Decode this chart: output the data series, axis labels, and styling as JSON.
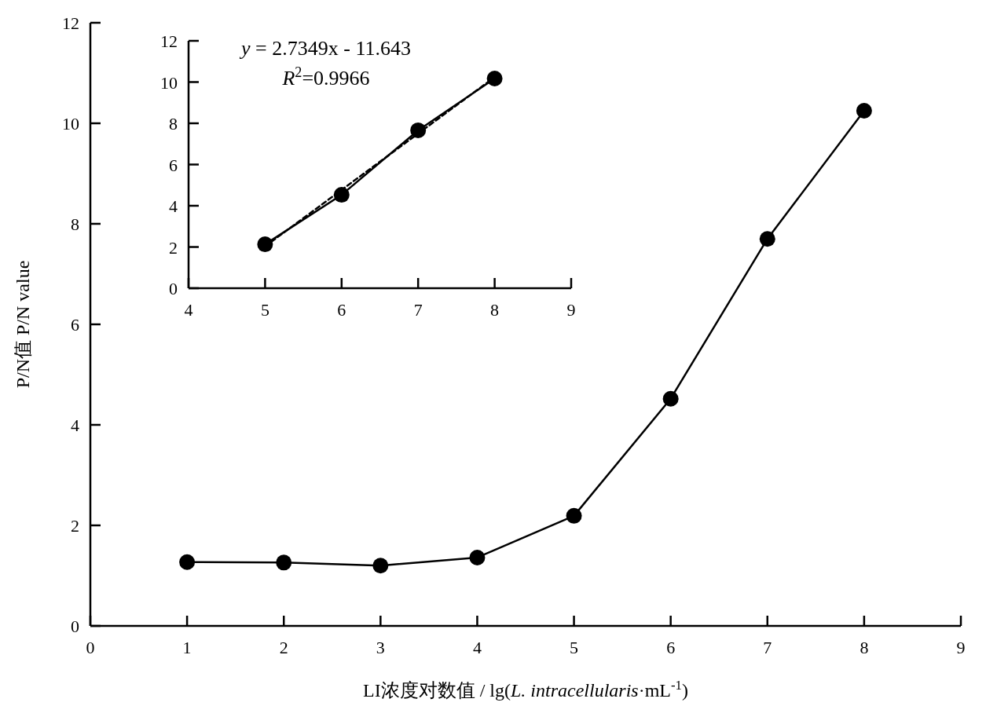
{
  "chart_data": [
    {
      "type": "line",
      "x": [
        1,
        2,
        3,
        4,
        5,
        6,
        7,
        8
      ],
      "values": [
        1.27,
        1.26,
        1.2,
        1.36,
        2.19,
        4.52,
        7.7,
        10.25
      ],
      "marker": "circle",
      "line_style": "solid",
      "color": "#000000",
      "xlim": [
        0,
        9
      ],
      "xticks": [
        0,
        1,
        2,
        3,
        4,
        5,
        6,
        7,
        8,
        9
      ],
      "ylim": [
        0,
        12
      ],
      "yticks": [
        0,
        2,
        4,
        6,
        8,
        10,
        12
      ],
      "grid": false,
      "xlabel": "LI浓度对数值 / lg(*L. intracellularis*·mL$^{-1}$)",
      "ylabel": "P/N值 P/N value"
    },
    {
      "type": "line",
      "series": [
        {
          "x": [
            5,
            6,
            7,
            8
          ],
          "values": [
            2.13,
            4.53,
            7.66,
            10.17
          ],
          "color": "#000000",
          "marker": "circle",
          "line_style": "solid"
        },
        {
          "x": [
            5,
            8
          ],
          "values": [
            2.03,
            10.24
          ],
          "color": "#000000",
          "marker": "none",
          "line_style": "dashed"
        }
      ],
      "xlim": [
        4,
        9
      ],
      "xticks": [
        4,
        5,
        6,
        7,
        8,
        9
      ],
      "ylim": [
        0,
        12
      ],
      "yticks": [
        0,
        2,
        4,
        6,
        8,
        10,
        12
      ],
      "grid": false,
      "annotations": [
        "*y* = 2.7349x - 11.643",
        "*R*$^{2}$=0.9966"
      ]
    }
  ]
}
